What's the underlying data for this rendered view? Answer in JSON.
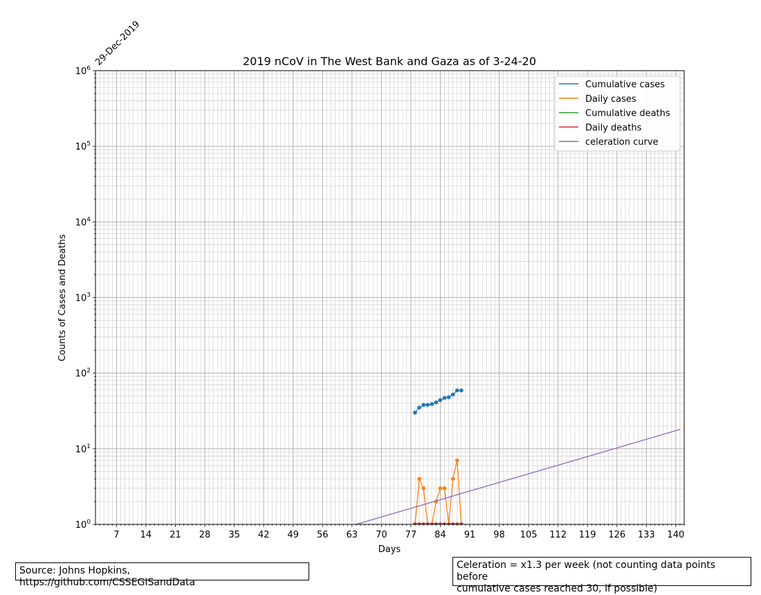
{
  "chart_data": {
    "type": "line",
    "title": "2019 nCoV in The West Bank and Gaza as of 3-24-20",
    "xlabel": "Days",
    "ylabel": "Counts of Cases and Deaths",
    "date_annotation": "29-Dec-2019",
    "x_scale": "linear",
    "y_scale": "log",
    "xlim": [
      2,
      142
    ],
    "ylim": [
      1,
      1000000
    ],
    "x_ticks": [
      7,
      14,
      21,
      28,
      35,
      42,
      49,
      56,
      63,
      70,
      77,
      84,
      91,
      98,
      105,
      112,
      119,
      126,
      133,
      140
    ],
    "y_ticks": [
      {
        "base": "10",
        "exp": "0"
      },
      {
        "base": "10",
        "exp": "1"
      },
      {
        "base": "10",
        "exp": "2"
      },
      {
        "base": "10",
        "exp": "3"
      },
      {
        "base": "10",
        "exp": "4"
      },
      {
        "base": "10",
        "exp": "5"
      },
      {
        "base": "10",
        "exp": "6"
      }
    ],
    "grid": true,
    "legend_position": "top-right",
    "series": [
      {
        "name": "Cumulative cases",
        "color": "#1f77b4",
        "markers": true,
        "x": [
          78,
          79,
          80,
          81,
          82,
          83,
          84,
          85,
          86,
          87,
          88,
          89
        ],
        "y": [
          30,
          35,
          38,
          38,
          39,
          41,
          44,
          47,
          48,
          52,
          59,
          59
        ]
      },
      {
        "name": "Daily cases",
        "color": "#ff7f0e",
        "markers": true,
        "x": [
          78,
          79,
          80,
          81,
          82,
          83,
          84,
          85,
          86,
          87,
          88,
          89
        ],
        "y": [
          1,
          4,
          3,
          1,
          1,
          2,
          3,
          3,
          1,
          4,
          7,
          1
        ]
      },
      {
        "name": "Cumulative deaths",
        "color": "#2ca02c",
        "markers": true,
        "x": [
          78,
          79,
          80,
          81,
          82,
          83,
          84,
          85,
          86,
          87,
          88,
          89
        ],
        "y": [
          1,
          1,
          1,
          1,
          1,
          1,
          1,
          1,
          1,
          1,
          1,
          1
        ]
      },
      {
        "name": "Daily deaths",
        "color": "#d62728",
        "markers": true,
        "x": [
          78,
          79,
          80,
          81,
          82,
          83,
          84,
          85,
          86,
          87,
          88,
          89
        ],
        "y": [
          1,
          1,
          1,
          1,
          1,
          1,
          1,
          1,
          1,
          1,
          1,
          1
        ]
      },
      {
        "name": "celeration curve",
        "color": "#9467bd",
        "markers": false,
        "x": [
          64,
          141
        ],
        "y": [
          1,
          18
        ]
      }
    ]
  },
  "footer": {
    "source_text": "Source: Johns Hopkins, https://github.com/CSSEGISandData",
    "celeration_line1": "Celeration = x1.3 per week (not counting data points before",
    "celeration_line2": "cumulative cases reached 30, if possible)"
  }
}
